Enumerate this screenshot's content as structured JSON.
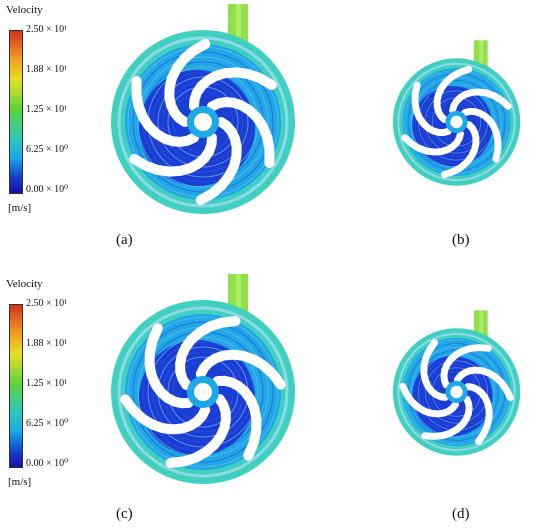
{
  "legend": {
    "title": "Velocity",
    "ticks": [
      "2.50 × 10¹",
      "1.88 × 10¹",
      "1.25 × 10¹",
      "6.25 × 10⁰",
      "0.00 × 10⁰"
    ],
    "unit": "[m/s]"
  },
  "panels": [
    {
      "label": "(a)"
    },
    {
      "label": "(b)"
    },
    {
      "label": "(c)"
    },
    {
      "label": "(d)"
    }
  ],
  "colors": {
    "outlet": "#8fe04a",
    "volute": "#3fd0c0",
    "blade": "#ffffff",
    "low": "#1a2ad0",
    "mid": "#1ea8e6"
  }
}
